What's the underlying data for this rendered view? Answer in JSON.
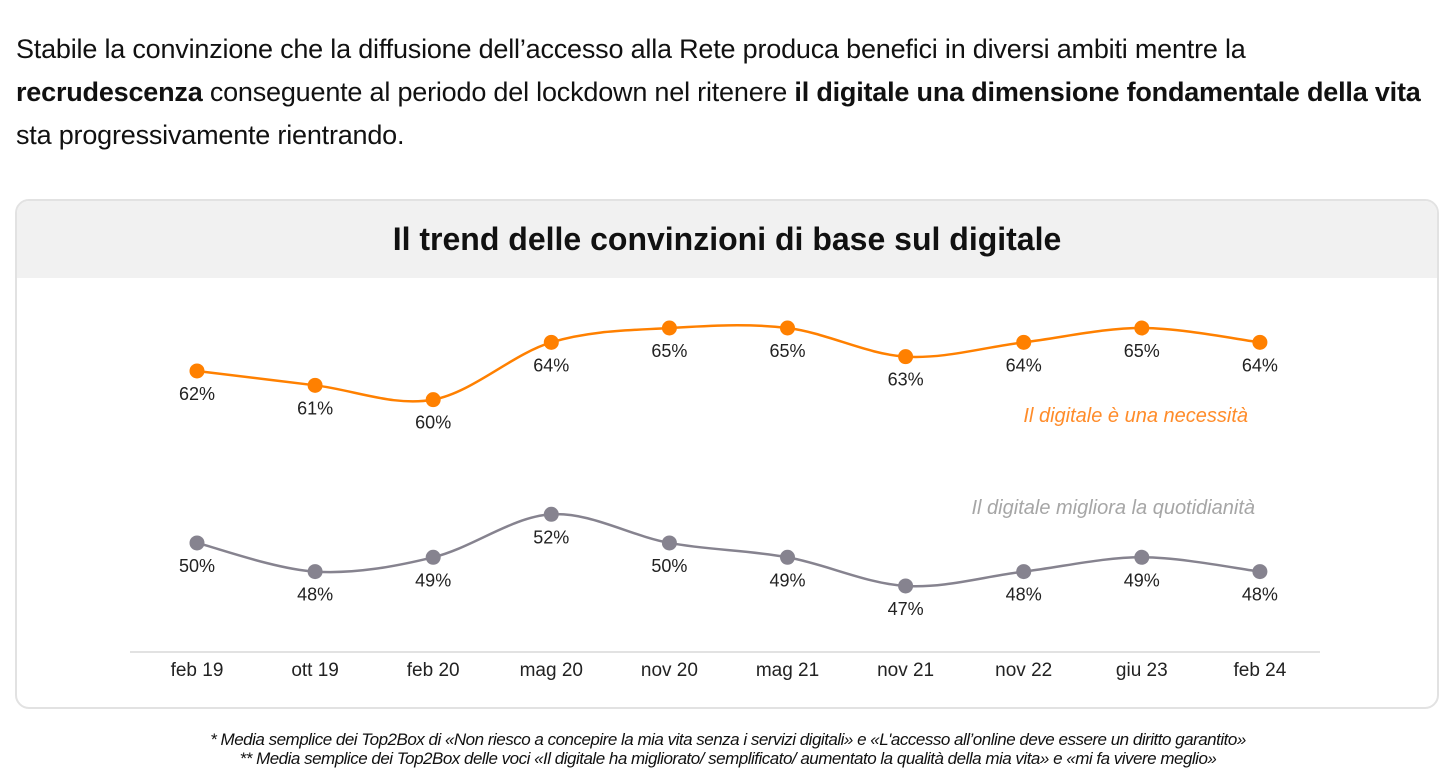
{
  "intro": {
    "part1": "Stabile la convinzione che la diffusione dell’accesso alla Rete produca benefici in diversi ambiti mentre la ",
    "bold1": "recrudescenza",
    "part2": " conseguente al periodo del lockdown nel ritenere ",
    "bold2": "il digitale una dimensione fondamentale della vita",
    "part3": " sta progressivamente rientrando."
  },
  "chart_data": {
    "type": "line",
    "title": "Il trend delle convinzioni di base sul digitale",
    "categories": [
      "feb 19",
      "ott 19",
      "feb 20",
      "mag 20",
      "nov 20",
      "mag 21",
      "nov 21",
      "nov 22",
      "giu 23",
      "feb 24"
    ],
    "series": [
      {
        "name": "Il digitale è una necessità",
        "color": "#ff8000",
        "values": [
          62,
          61,
          60,
          64,
          65,
          65,
          63,
          64,
          65,
          64
        ],
        "labels": [
          "62%",
          "61%",
          "60%",
          "64%",
          "65%",
          "65%",
          "63%",
          "64%",
          "65%",
          "64%"
        ]
      },
      {
        "name": "Il digitale migliora la quotidianità",
        "color": "#86838f",
        "values": [
          50,
          48,
          49,
          52,
          50,
          49,
          47,
          48,
          49,
          48
        ],
        "labels": [
          "50%",
          "48%",
          "49%",
          "52%",
          "50%",
          "49%",
          "47%",
          "48%",
          "49%",
          "48%"
        ]
      }
    ],
    "xlabel": "",
    "ylabel": "",
    "grid": false,
    "legend": "inline-labels"
  },
  "notes": [
    "* Media semplice dei Top2Box di «Non riesco a concepire la mia vita senza i servizi digitali» e «L'accesso all’online deve essere un diritto garantito»",
    "** Media semplice dei Top2Box delle voci «Il digitale ha migliorato/ semplificato/ aumentato la qualità della mia vita» e «mi fa vivere meglio»"
  ]
}
